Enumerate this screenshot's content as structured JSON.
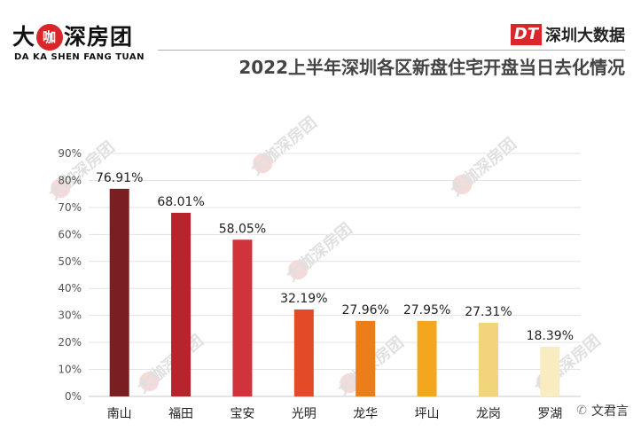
{
  "header": {
    "brand_main": "大咖深房团",
    "brand_dot": "咖",
    "brand_left": "大",
    "brand_right": "深房团",
    "brand_sub": "DA KA SHEN FANG TUAN",
    "source_mark": "DT",
    "source_name": "深圳大数据",
    "title": "2022上半年深圳各区新盘住宅开盘当日去化情况"
  },
  "watermark": {
    "text": "大咖深房团"
  },
  "footer": {
    "wechat_label": "文君言",
    "wechat_icon": "wechat-icon"
  },
  "colors": {
    "brand_red": "#d8262b"
  },
  "chart_data": {
    "type": "bar",
    "categories": [
      "南山",
      "福田",
      "宝安",
      "光明",
      "龙华",
      "坪山",
      "龙岗",
      "罗湖"
    ],
    "values": [
      76.91,
      68.01,
      58.05,
      32.19,
      27.96,
      27.95,
      27.31,
      18.39
    ],
    "value_labels": [
      "76.91%",
      "68.01%",
      "58.05%",
      "32.19%",
      "27.96%",
      "27.95%",
      "27.31%",
      "18.39%"
    ],
    "bar_colors": [
      "#7a1e22",
      "#b5252b",
      "#d1333a",
      "#e24a28",
      "#ec7d1b",
      "#f3a71f",
      "#f2d47a",
      "#f8ecc0"
    ],
    "title": "2022上半年深圳各区新盘住宅开盘当日去化情况",
    "xlabel": "",
    "ylabel": "",
    "ylim": [
      0,
      90
    ],
    "yticks": [
      0,
      10,
      20,
      30,
      40,
      50,
      60,
      70,
      80,
      90
    ],
    "ytick_labels": [
      "0%",
      "10%",
      "20%",
      "30%",
      "40%",
      "50%",
      "60%",
      "70%",
      "80%",
      "90%"
    ],
    "grid": true,
    "legend": "none"
  }
}
